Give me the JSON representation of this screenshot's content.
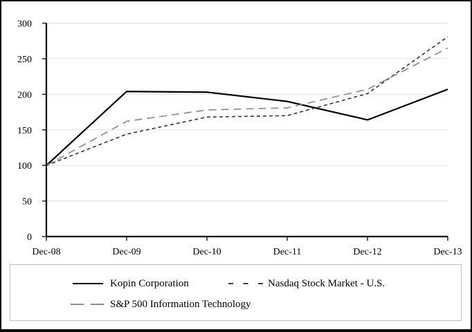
{
  "chart_data": {
    "type": "line",
    "title": "",
    "xlabel": "",
    "ylabel": "",
    "x_categories": [
      "Dec-08",
      "Dec-09",
      "Dec-10",
      "Dec-11",
      "Dec-12",
      "Dec-13"
    ],
    "ylim": [
      0,
      300
    ],
    "yticks": [
      0,
      50,
      100,
      150,
      200,
      250,
      300
    ],
    "grid": "horizontal-light",
    "legend_position": "bottom-boxed",
    "series": [
      {
        "name": "Kopin Corporation",
        "values": [
          100,
          204,
          203,
          190,
          164,
          207
        ],
        "color": "#000000",
        "dash": "",
        "legend_dash": ""
      },
      {
        "name": "Nasdaq Stock Market - U.S.",
        "values": [
          100,
          144,
          168,
          170,
          201,
          281
        ],
        "color": "#3d3d3d",
        "dash": "5 4",
        "legend_dash": "7 14.5"
      },
      {
        "name": "S&P 500 Information Technology",
        "values": [
          100,
          162,
          178,
          181,
          207,
          265
        ],
        "color": "#8c8c8c",
        "dash": "11 7",
        "legend_dash": "19 10"
      }
    ]
  },
  "colors": {
    "background": "#ffffff",
    "frame_border": "#000000",
    "gridline": "#e0e0e0",
    "axis": "#000000",
    "tick": "#000000",
    "label_text": "#000000",
    "legend_border": "#c0c0c0"
  }
}
